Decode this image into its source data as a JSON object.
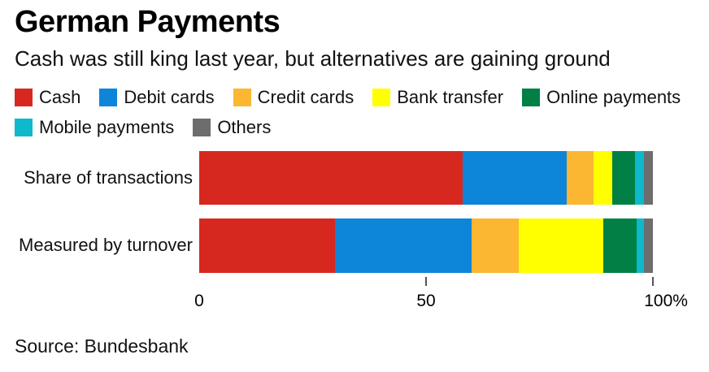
{
  "header": {
    "title": "German Payments",
    "subtitle": "Cash was still king last year, but alternatives are gaining ground"
  },
  "chart_data": {
    "type": "bar",
    "orientation": "horizontal-stacked",
    "title": "German Payments",
    "subtitle": "Cash was still king last year, but alternatives are gaining ground",
    "categories": [
      "Share of transactions",
      "Measured by turnover"
    ],
    "series": [
      {
        "name": "Cash",
        "color": "#d7281f",
        "values": [
          58,
          30
        ]
      },
      {
        "name": "Debit cards",
        "color": "#0d85d8",
        "values": [
          23,
          30
        ]
      },
      {
        "name": "Credit cards",
        "color": "#fbb632",
        "values": [
          6,
          10.5
        ]
      },
      {
        "name": "Bank transfer",
        "color": "#ffff00",
        "values": [
          4,
          18.5
        ]
      },
      {
        "name": "Online payments",
        "color": "#008044",
        "values": [
          5,
          7.5
        ]
      },
      {
        "name": "Mobile payments",
        "color": "#0eb8cd",
        "values": [
          2,
          1.5
        ]
      },
      {
        "name": "Others",
        "color": "#6d6d6d",
        "values": [
          2,
          2
        ]
      }
    ],
    "x_axis": {
      "min": 0,
      "max": 100,
      "unit": "%",
      "ticks": [
        {
          "label": "0",
          "value": 0
        },
        {
          "label": "50",
          "value": 50
        },
        {
          "label": "100%",
          "value": 100
        }
      ],
      "tick_marks_at": [
        50,
        100
      ]
    },
    "legend_position": "top",
    "grid": false
  },
  "source": "Source: Bundesbank"
}
